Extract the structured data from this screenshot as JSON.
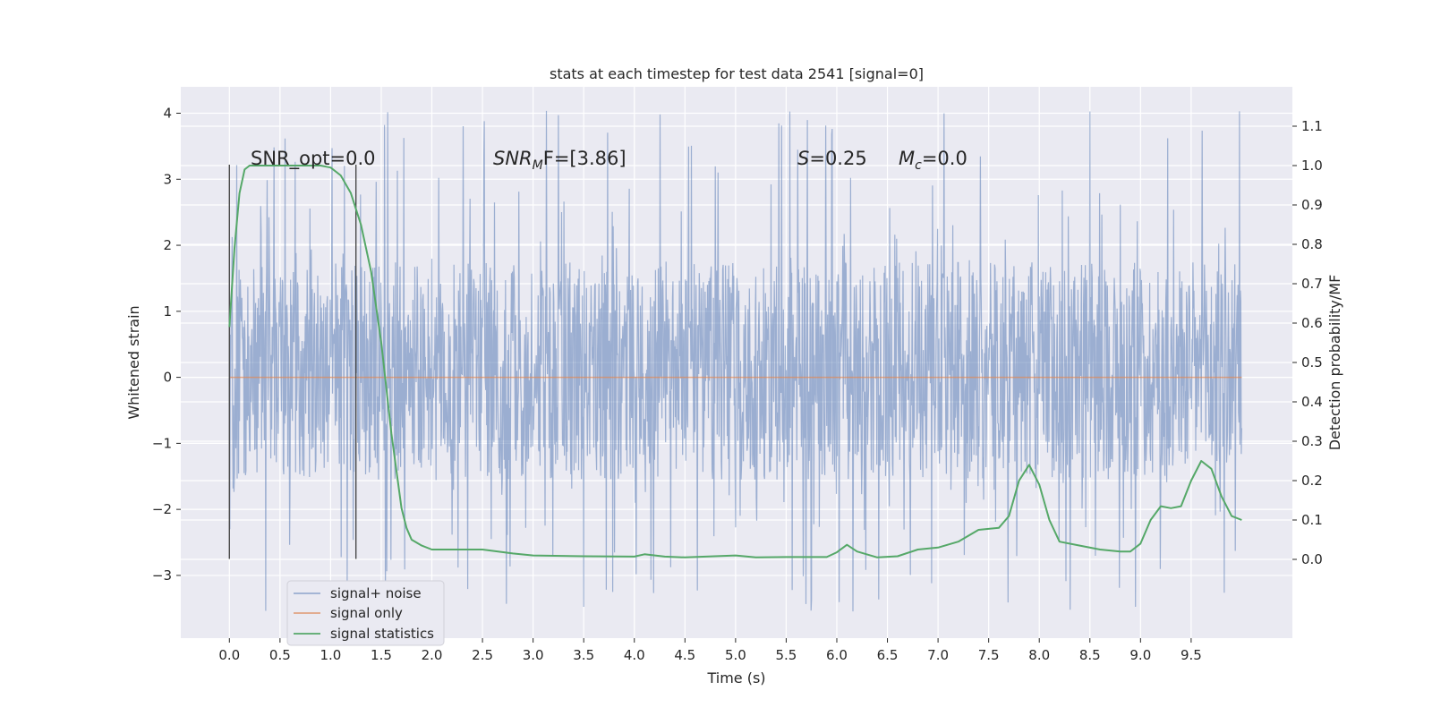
{
  "chart_data": {
    "type": "line",
    "title": "stats at each timestep for test data 2541 [signal=0]",
    "xlabel": "Time (s)",
    "ylabel_left": "Whitened strain",
    "ylabel_right": "Detection probability/MF",
    "xlim": [
      -0.48,
      10.5
    ],
    "ylim_left": [
      -3.95,
      4.4
    ],
    "ylim_right": [
      -0.2,
      1.2
    ],
    "xticks": [
      "0.0",
      "0.5",
      "1.0",
      "1.5",
      "2.0",
      "2.5",
      "3.0",
      "3.5",
      "4.0",
      "4.5",
      "5.0",
      "5.5",
      "6.0",
      "6.5",
      "7.0",
      "7.5",
      "8.0",
      "8.5",
      "9.0",
      "9.5"
    ],
    "yticks_left": [
      "−3",
      "−2",
      "−1",
      "0",
      "1",
      "2",
      "3",
      "4"
    ],
    "yticks_right": [
      "0.0",
      "0.1",
      "0.2",
      "0.3",
      "0.4",
      "0.5",
      "0.6",
      "0.7",
      "0.8",
      "0.9",
      "1.0",
      "1.1"
    ],
    "grid": true,
    "legend_position": "lower-left",
    "annotations": {
      "snr_opt": "SNR_opt=0.0",
      "snr_mf_var": "SNR",
      "snr_mf_sub": "M",
      "snr_mf_tail": "F=[3.86]",
      "s_var": "S",
      "s_value": "=0.25",
      "mc_var": "M",
      "mc_sub": "c",
      "mc_value": "=0.0"
    },
    "vlines": [
      {
        "x": 0.0,
        "y_from": -2.75,
        "y_to": 3.22
      },
      {
        "x": 1.25,
        "y_from": -2.75,
        "y_to": 3.22
      }
    ],
    "series": [
      {
        "name": "signal+ noise",
        "axis": "left",
        "color": "#4c72b0",
        "description_x_range": [
          0.0,
          10.0
        ],
        "envelope": {
          "typical_upper": 1.5,
          "typical_lower": -1.55,
          "peak_max": 4.05,
          "peak_min": -3.55
        }
      },
      {
        "name": "signal only",
        "axis": "left",
        "color": "#dd8452",
        "x": [
          0.0,
          10.0
        ],
        "y": [
          0.0,
          0.0
        ]
      },
      {
        "name": "signal statistics",
        "axis": "right",
        "color": "#55a868",
        "x": [
          0.0,
          0.05,
          0.1,
          0.15,
          0.2,
          0.3,
          0.5,
          0.7,
          0.9,
          1.0,
          1.1,
          1.2,
          1.3,
          1.4,
          1.5,
          1.6,
          1.7,
          1.75,
          1.8,
          1.9,
          2.0,
          2.2,
          2.5,
          2.8,
          3.0,
          3.5,
          4.0,
          4.1,
          4.3,
          4.5,
          5.0,
          5.2,
          5.5,
          5.9,
          6.0,
          6.1,
          6.2,
          6.4,
          6.6,
          6.8,
          7.0,
          7.2,
          7.4,
          7.6,
          7.7,
          7.8,
          7.9,
          8.0,
          8.1,
          8.2,
          8.4,
          8.6,
          8.8,
          8.9,
          9.0,
          9.1,
          9.2,
          9.3,
          9.4,
          9.5,
          9.6,
          9.7,
          9.8,
          9.9,
          10.0
        ],
        "y": [
          0.59,
          0.79,
          0.93,
          0.99,
          1.0,
          1.0,
          1.0,
          1.0,
          1.0,
          0.995,
          0.975,
          0.93,
          0.85,
          0.73,
          0.55,
          0.32,
          0.13,
          0.08,
          0.05,
          0.035,
          0.025,
          0.025,
          0.025,
          0.015,
          0.01,
          0.008,
          0.007,
          0.013,
          0.007,
          0.005,
          0.01,
          0.005,
          0.006,
          0.006,
          0.018,
          0.037,
          0.02,
          0.005,
          0.008,
          0.025,
          0.03,
          0.045,
          0.075,
          0.08,
          0.11,
          0.2,
          0.24,
          0.19,
          0.1,
          0.045,
          0.035,
          0.025,
          0.02,
          0.02,
          0.04,
          0.1,
          0.135,
          0.13,
          0.135,
          0.2,
          0.25,
          0.23,
          0.16,
          0.11,
          0.1
        ]
      }
    ]
  }
}
